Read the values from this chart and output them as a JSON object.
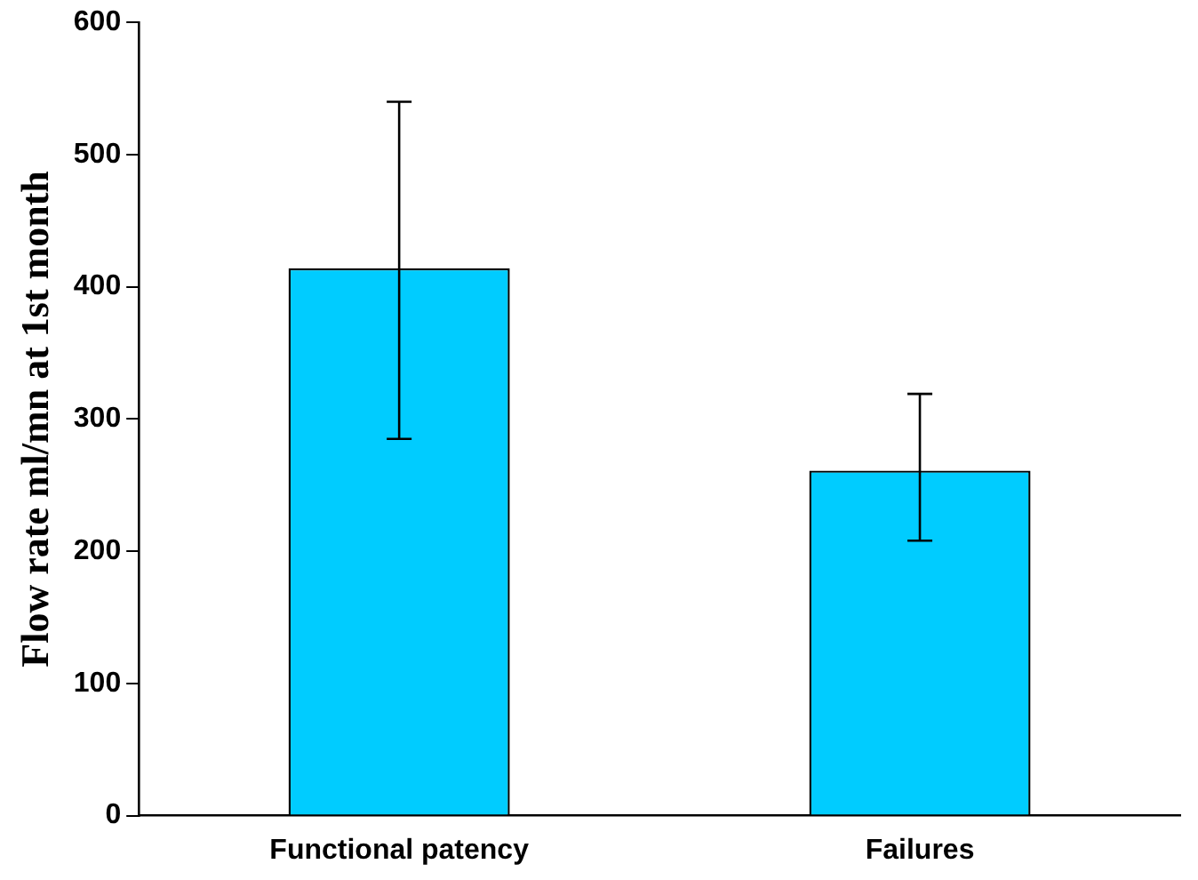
{
  "chart_data": {
    "type": "bar",
    "ylabel": "Flow rate ml/mn at 1st month",
    "categories": [
      "Functional patency",
      "Failures"
    ],
    "values": [
      414,
      261
    ],
    "errors": [
      [
        285,
        540
      ],
      [
        208,
        319
      ]
    ],
    "color": "#00ccff",
    "ylim": [
      0,
      600
    ],
    "yticks": [
      0,
      100,
      200,
      300,
      400,
      500,
      600
    ],
    "grid": false,
    "legend": false
  }
}
